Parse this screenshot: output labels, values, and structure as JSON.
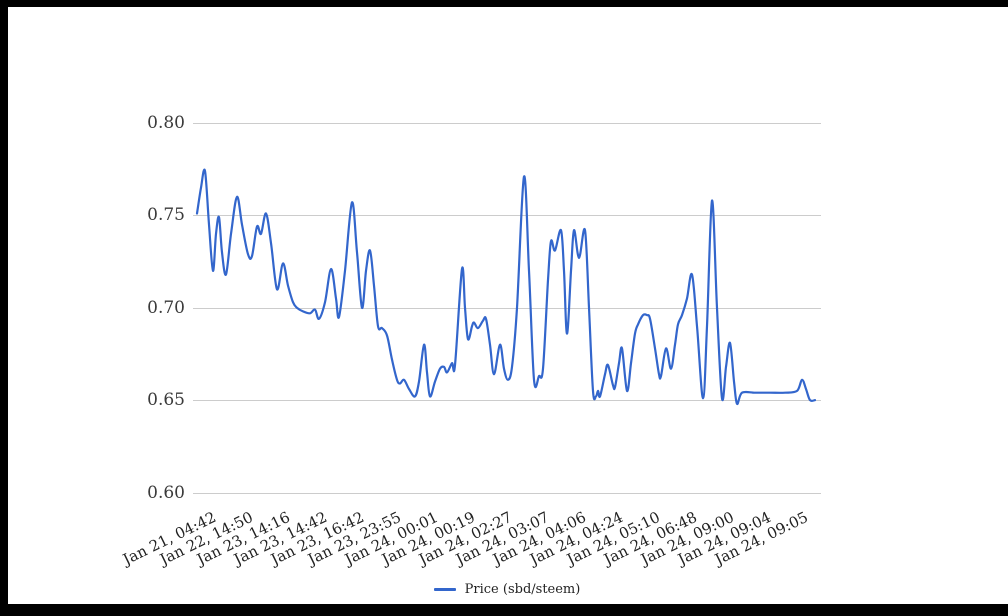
{
  "window": {
    "frame_color": "#000000",
    "background_color": "#ffffff"
  },
  "legend": {
    "label": "Price (sbd/steem)",
    "swatch_color": "#3366cc"
  },
  "chart_data": {
    "type": "line",
    "title": "",
    "series": [
      {
        "name": "Price (sbd/steem)"
      }
    ],
    "line_color": "#3366cc",
    "grid_color": "#cccccc",
    "grid": true,
    "legend_position": "bottom",
    "ylim": [
      0.6,
      0.8
    ],
    "y_tick_labels": [
      "0.80",
      "0.75",
      "0.70",
      "0.65",
      "0.60"
    ],
    "x_tick_labels": [
      "Jan 21, 04:42",
      "Jan 22, 14:50",
      "Jan 23, 14:16",
      "Jan 23, 14:42",
      "Jan 23, 16:42",
      "Jan 23, 23:55",
      "Jan 24, 00:01",
      "Jan 24, 00:19",
      "Jan 24, 02:27",
      "Jan 24, 03:07",
      "Jan 24, 04:06",
      "Jan 24, 04:24",
      "Jan 24, 05:10",
      "Jan 24, 06:48",
      "Jan 24, 09:00",
      "Jan 24, 09:04",
      "Jan 24, 09:05"
    ],
    "x_labels_rotation_deg": -26,
    "points_format": [
      "x_percent_across_plot",
      "price_sbd_per_steem"
    ],
    "points": [
      [
        0.32,
        0.751
      ],
      [
        0.97,
        0.765
      ],
      [
        1.61,
        0.774
      ],
      [
        2.26,
        0.745
      ],
      [
        2.9,
        0.72
      ],
      [
        3.39,
        0.74
      ],
      [
        3.87,
        0.749
      ],
      [
        4.35,
        0.73
      ],
      [
        5,
        0.718
      ],
      [
        5.81,
        0.74
      ],
      [
        6.77,
        0.76
      ],
      [
        7.58,
        0.745
      ],
      [
        8.55,
        0.729
      ],
      [
        9.19,
        0.728
      ],
      [
        10,
        0.744
      ],
      [
        10.65,
        0.74
      ],
      [
        11.45,
        0.751
      ],
      [
        12.26,
        0.735
      ],
      [
        13.23,
        0.71
      ],
      [
        14.19,
        0.724
      ],
      [
        15,
        0.712
      ],
      [
        15.81,
        0.703
      ],
      [
        16.45,
        0.7
      ],
      [
        17.42,
        0.698
      ],
      [
        18.55,
        0.697
      ],
      [
        19.35,
        0.699
      ],
      [
        20,
        0.694
      ],
      [
        20.97,
        0.703
      ],
      [
        21.94,
        0.721
      ],
      [
        22.74,
        0.705
      ],
      [
        23.23,
        0.695
      ],
      [
        24.19,
        0.72
      ],
      [
        25.32,
        0.757
      ],
      [
        26.13,
        0.73
      ],
      [
        26.94,
        0.7
      ],
      [
        27.58,
        0.72
      ],
      [
        28.23,
        0.731
      ],
      [
        28.87,
        0.712
      ],
      [
        29.52,
        0.69
      ],
      [
        30.16,
        0.689
      ],
      [
        30.97,
        0.685
      ],
      [
        31.77,
        0.672
      ],
      [
        32.58,
        0.661
      ],
      [
        33.06,
        0.659
      ],
      [
        33.71,
        0.661
      ],
      [
        34.52,
        0.656
      ],
      [
        35.48,
        0.652
      ],
      [
        36.13,
        0.66
      ],
      [
        36.94,
        0.68
      ],
      [
        37.42,
        0.665
      ],
      [
        37.9,
        0.652
      ],
      [
        38.71,
        0.66
      ],
      [
        39.52,
        0.667
      ],
      [
        40.16,
        0.668
      ],
      [
        40.65,
        0.665
      ],
      [
        41.45,
        0.67
      ],
      [
        41.94,
        0.669
      ],
      [
        43.06,
        0.721
      ],
      [
        43.55,
        0.7
      ],
      [
        44.03,
        0.683
      ],
      [
        44.68,
        0.69
      ],
      [
        45,
        0.692
      ],
      [
        45.65,
        0.689
      ],
      [
        46.45,
        0.693
      ],
      [
        46.94,
        0.694
      ],
      [
        47.58,
        0.68
      ],
      [
        48.23,
        0.664
      ],
      [
        49.19,
        0.68
      ],
      [
        49.84,
        0.667
      ],
      [
        50.48,
        0.661
      ],
      [
        51.13,
        0.668
      ],
      [
        51.94,
        0.7
      ],
      [
        53.06,
        0.771
      ],
      [
        53.87,
        0.72
      ],
      [
        54.68,
        0.661
      ],
      [
        55.48,
        0.663
      ],
      [
        56.13,
        0.667
      ],
      [
        56.94,
        0.715
      ],
      [
        57.42,
        0.736
      ],
      [
        58.06,
        0.731
      ],
      [
        59.03,
        0.742
      ],
      [
        59.52,
        0.72
      ],
      [
        60,
        0.686
      ],
      [
        60.65,
        0.72
      ],
      [
        61.13,
        0.742
      ],
      [
        61.94,
        0.727
      ],
      [
        62.9,
        0.742
      ],
      [
        63.55,
        0.7
      ],
      [
        64.19,
        0.655
      ],
      [
        64.68,
        0.652
      ],
      [
        65,
        0.655
      ],
      [
        65.32,
        0.652
      ],
      [
        66.13,
        0.664
      ],
      [
        66.61,
        0.669
      ],
      [
        67.42,
        0.658
      ],
      [
        67.74,
        0.657
      ],
      [
        68.39,
        0.67
      ],
      [
        68.87,
        0.678
      ],
      [
        69.68,
        0.655
      ],
      [
        70.32,
        0.67
      ],
      [
        70.97,
        0.686
      ],
      [
        71.45,
        0.691
      ],
      [
        72.26,
        0.696
      ],
      [
        72.9,
        0.696
      ],
      [
        73.39,
        0.694
      ],
      [
        74.19,
        0.678
      ],
      [
        74.84,
        0.664
      ],
      [
        75.16,
        0.663
      ],
      [
        75.97,
        0.678
      ],
      [
        76.77,
        0.667
      ],
      [
        77.42,
        0.68
      ],
      [
        77.9,
        0.691
      ],
      [
        78.55,
        0.696
      ],
      [
        79.35,
        0.705
      ],
      [
        80.16,
        0.718
      ],
      [
        80.97,
        0.69
      ],
      [
        81.94,
        0.651
      ],
      [
        82.58,
        0.69
      ],
      [
        83.39,
        0.758
      ],
      [
        84.19,
        0.7
      ],
      [
        85,
        0.651
      ],
      [
        85.65,
        0.668
      ],
      [
        86.29,
        0.681
      ],
      [
        86.94,
        0.66
      ],
      [
        87.42,
        0.648
      ],
      [
        88.23,
        0.654
      ],
      [
        90.32,
        0.654
      ],
      [
        92.74,
        0.654
      ],
      [
        95.16,
        0.654
      ],
      [
        97.1,
        0.655
      ],
      [
        97.9,
        0.661
      ],
      [
        98.55,
        0.656
      ],
      [
        99.19,
        0.65
      ],
      [
        100,
        0.65
      ]
    ]
  }
}
